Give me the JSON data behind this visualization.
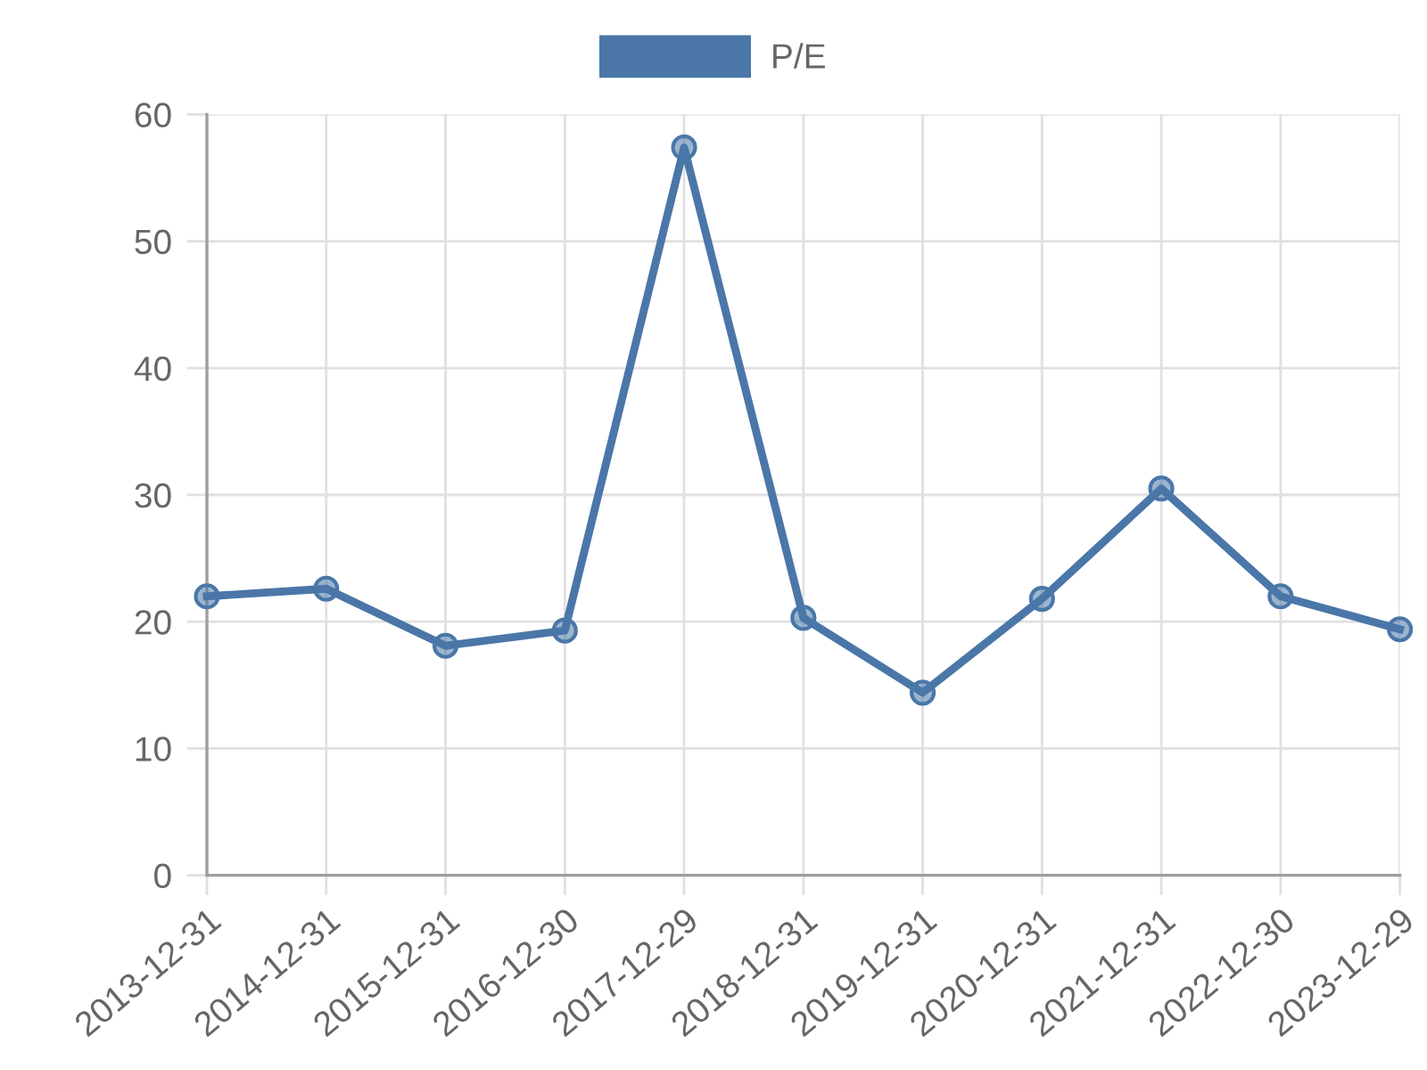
{
  "chart_data": {
    "type": "line",
    "categories": [
      "2013-12-31",
      "2014-12-31",
      "2015-12-31",
      "2016-12-30",
      "2017-12-29",
      "2018-12-31",
      "2019-12-31",
      "2020-12-31",
      "2021-12-31",
      "2022-12-30",
      "2023-12-29"
    ],
    "series": [
      {
        "name": "P/E",
        "color": "#4a77a8",
        "values": [
          22.0,
          22.6,
          18.1,
          19.3,
          57.4,
          20.3,
          14.4,
          21.8,
          30.5,
          22.0,
          19.4
        ]
      }
    ],
    "ylim": [
      0,
      60
    ],
    "yticks": [
      0,
      10,
      20,
      30,
      40,
      50,
      60
    ],
    "grid": true,
    "legend": "top",
    "marker": "circle",
    "line_style": "solid"
  }
}
